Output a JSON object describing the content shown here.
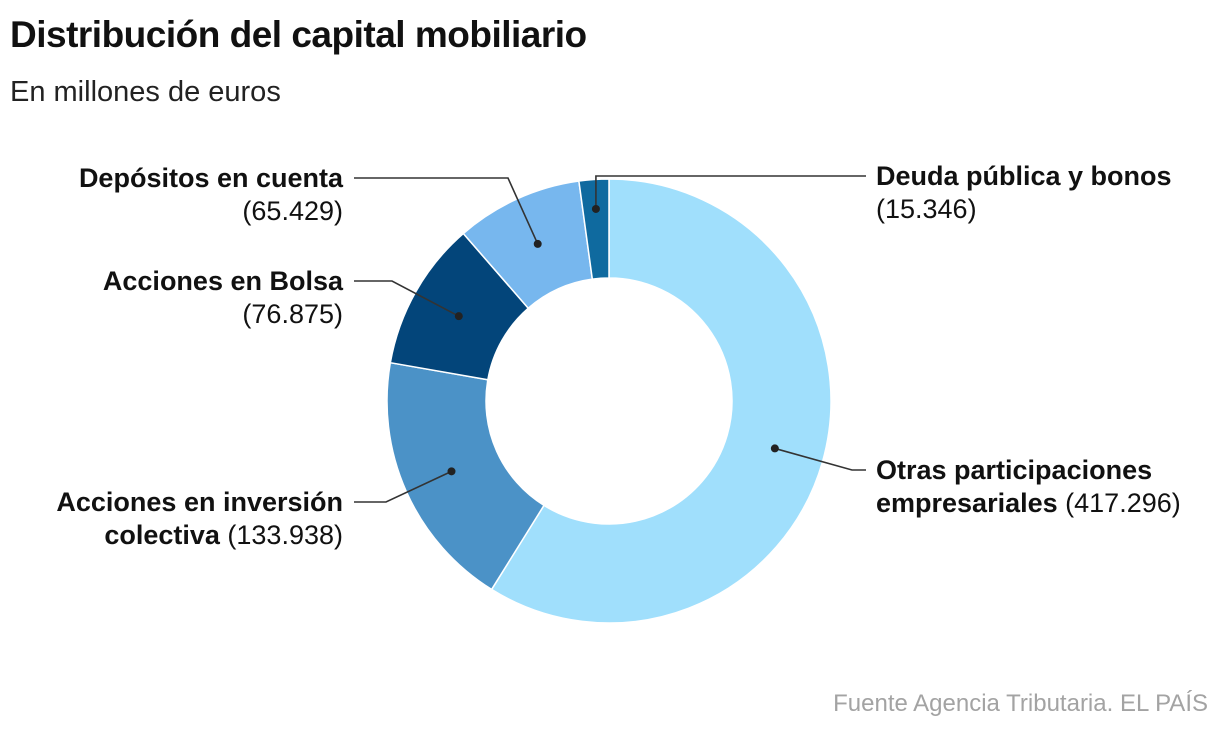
{
  "header": {
    "title": "Distribución del capital mobiliario",
    "subtitle": "En millones de euros"
  },
  "labels": {
    "depositos": {
      "name": "Depósitos en cuenta",
      "value": "(65.429)"
    },
    "bolsa": {
      "name": "Acciones en Bolsa",
      "value": "(76.875)"
    },
    "inversion": {
      "name_line1": "Acciones en inversión",
      "name_line2": "colectiva",
      "value": "(133.938)"
    },
    "deuda": {
      "name": "Deuda pública y bonos",
      "value": "(15.346)"
    },
    "otras": {
      "name_line1": "Otras participaciones",
      "name_line2": "empresariales",
      "value": "(417.296)"
    }
  },
  "footer": {
    "source": "Fuente Agencia Tributaria. EL PAÍS"
  },
  "chart_data": {
    "type": "pie",
    "variant": "donut",
    "title": "Distribución del capital mobiliario",
    "subtitle": "En millones de euros",
    "unit": "millones de euros",
    "slices": [
      {
        "name": "Otras participaciones empresariales",
        "value": 417296,
        "color": "#a0dffc"
      },
      {
        "name": "Acciones en inversión colectiva",
        "value": 133938,
        "color": "#4b92c7"
      },
      {
        "name": "Acciones en Bolsa",
        "value": 76875,
        "color": "#03457a"
      },
      {
        "name": "Depósitos en cuenta",
        "value": 65429,
        "color": "#77b7ee"
      },
      {
        "name": "Deuda pública y bonos",
        "value": 15346,
        "color": "#0f6a9f"
      }
    ],
    "start": "top",
    "direction": "clockwise",
    "legend": "none"
  }
}
